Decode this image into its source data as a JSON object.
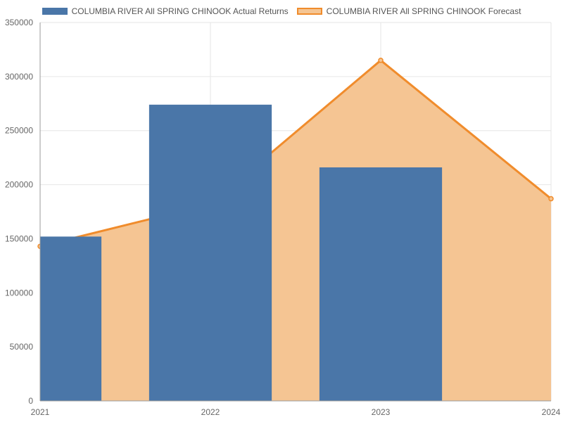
{
  "chart_data": {
    "type": "bar",
    "categories": [
      "2021",
      "2022",
      "2023",
      "2024"
    ],
    "ylim": [
      0,
      350000
    ],
    "yticks": [
      0,
      50000,
      100000,
      150000,
      200000,
      250000,
      300000,
      350000
    ],
    "grid": true,
    "legend_position": "top-center",
    "series": [
      {
        "name": "COLUMBIA RIVER All SPRING CHINOOK  Actual Returns",
        "type": "bar",
        "color": "#4a76a8",
        "values": [
          152000,
          274000,
          216000,
          null
        ]
      },
      {
        "name": "COLUMBIA RIVER All SPRING CHINOOK  Forecast",
        "type": "area",
        "color": "#f08c2c",
        "fill": "#f5c593",
        "values": [
          143000,
          182000,
          315000,
          187000
        ]
      }
    ]
  }
}
